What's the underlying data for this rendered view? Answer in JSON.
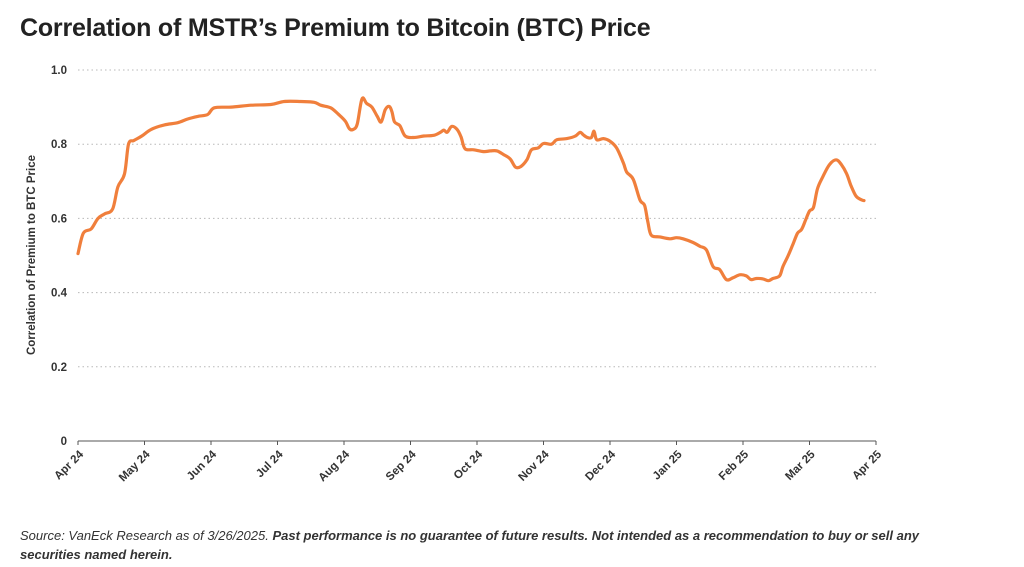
{
  "chart_data": {
    "type": "line",
    "title": "Correlation of MSTR’s Premium to Bitcoin (BTC) Price",
    "xlabel": "",
    "ylabel": "Correlation of Premium to BTC Price",
    "ylim": [
      0,
      1.0
    ],
    "yticks": [
      0,
      0.2,
      0.4,
      0.6,
      0.8,
      1.0
    ],
    "ytick_labels": [
      "0",
      "0.2",
      "0.4",
      "0.6",
      "0.8",
      "1.0"
    ],
    "x_tick_labels": [
      "Apr 24",
      "May 24",
      "Jun 24",
      "Jul 24",
      "Aug 24",
      "Sep 24",
      "Oct 24",
      "Nov 24",
      "Dec 24",
      "Jan 25",
      "Feb 25",
      "Mar 25",
      "Apr 25"
    ],
    "x_unit": "months since Apr 24",
    "grid": true,
    "line_color": "#F07F3C",
    "series": [
      {
        "name": "Correlation of MSTR’s Premium to BTC Price",
        "points": [
          [
            0.0,
            0.505
          ],
          [
            0.08,
            0.56
          ],
          [
            0.2,
            0.572
          ],
          [
            0.3,
            0.6
          ],
          [
            0.4,
            0.612
          ],
          [
            0.52,
            0.625
          ],
          [
            0.6,
            0.685
          ],
          [
            0.7,
            0.72
          ],
          [
            0.76,
            0.8
          ],
          [
            0.84,
            0.81
          ],
          [
            0.96,
            0.822
          ],
          [
            1.1,
            0.84
          ],
          [
            1.3,
            0.852
          ],
          [
            1.5,
            0.858
          ],
          [
            1.65,
            0.868
          ],
          [
            1.8,
            0.875
          ],
          [
            1.95,
            0.88
          ],
          [
            2.05,
            0.898
          ],
          [
            2.3,
            0.9
          ],
          [
            2.6,
            0.905
          ],
          [
            2.9,
            0.907
          ],
          [
            3.1,
            0.915
          ],
          [
            3.35,
            0.915
          ],
          [
            3.55,
            0.913
          ],
          [
            3.65,
            0.905
          ],
          [
            3.8,
            0.898
          ],
          [
            3.92,
            0.88
          ],
          [
            4.02,
            0.862
          ],
          [
            4.08,
            0.842
          ],
          [
            4.14,
            0.84
          ],
          [
            4.2,
            0.855
          ],
          [
            4.27,
            0.922
          ],
          [
            4.34,
            0.91
          ],
          [
            4.42,
            0.9
          ],
          [
            4.5,
            0.875
          ],
          [
            4.56,
            0.86
          ],
          [
            4.62,
            0.893
          ],
          [
            4.68,
            0.902
          ],
          [
            4.72,
            0.888
          ],
          [
            4.76,
            0.86
          ],
          [
            4.84,
            0.85
          ],
          [
            4.92,
            0.822
          ],
          [
            5.05,
            0.818
          ],
          [
            5.2,
            0.822
          ],
          [
            5.35,
            0.824
          ],
          [
            5.45,
            0.832
          ],
          [
            5.5,
            0.838
          ],
          [
            5.55,
            0.832
          ],
          [
            5.62,
            0.848
          ],
          [
            5.7,
            0.84
          ],
          [
            5.76,
            0.82
          ],
          [
            5.82,
            0.788
          ],
          [
            5.95,
            0.785
          ],
          [
            6.1,
            0.78
          ],
          [
            6.2,
            0.782
          ],
          [
            6.3,
            0.782
          ],
          [
            6.4,
            0.772
          ],
          [
            6.5,
            0.76
          ],
          [
            6.58,
            0.738
          ],
          [
            6.66,
            0.74
          ],
          [
            6.75,
            0.758
          ],
          [
            6.82,
            0.785
          ],
          [
            6.92,
            0.79
          ],
          [
            7.0,
            0.802
          ],
          [
            7.12,
            0.8
          ],
          [
            7.2,
            0.812
          ],
          [
            7.35,
            0.815
          ],
          [
            7.48,
            0.822
          ],
          [
            7.55,
            0.832
          ],
          [
            7.6,
            0.825
          ],
          [
            7.66,
            0.818
          ],
          [
            7.72,
            0.818
          ],
          [
            7.76,
            0.835
          ],
          [
            7.8,
            0.812
          ],
          [
            7.9,
            0.815
          ],
          [
            8.0,
            0.808
          ],
          [
            8.1,
            0.79
          ],
          [
            8.2,
            0.75
          ],
          [
            8.25,
            0.725
          ],
          [
            8.35,
            0.705
          ],
          [
            8.45,
            0.65
          ],
          [
            8.52,
            0.635
          ],
          [
            8.57,
            0.59
          ],
          [
            8.62,
            0.555
          ],
          [
            8.75,
            0.55
          ],
          [
            8.9,
            0.545
          ],
          [
            9.0,
            0.548
          ],
          [
            9.1,
            0.545
          ],
          [
            9.25,
            0.535
          ],
          [
            9.35,
            0.525
          ],
          [
            9.45,
            0.515
          ],
          [
            9.55,
            0.47
          ],
          [
            9.65,
            0.462
          ],
          [
            9.75,
            0.435
          ],
          [
            9.85,
            0.44
          ],
          [
            9.95,
            0.448
          ],
          [
            10.05,
            0.445
          ],
          [
            10.12,
            0.435
          ],
          [
            10.2,
            0.438
          ],
          [
            10.3,
            0.437
          ],
          [
            10.38,
            0.432
          ],
          [
            10.45,
            0.438
          ],
          [
            10.55,
            0.445
          ],
          [
            10.6,
            0.47
          ],
          [
            10.68,
            0.5
          ],
          [
            10.75,
            0.53
          ],
          [
            10.82,
            0.56
          ],
          [
            10.88,
            0.57
          ],
          [
            10.94,
            0.595
          ],
          [
            11.0,
            0.62
          ],
          [
            11.06,
            0.63
          ],
          [
            11.12,
            0.68
          ],
          [
            11.2,
            0.712
          ],
          [
            11.3,
            0.745
          ],
          [
            11.4,
            0.758
          ],
          [
            11.48,
            0.745
          ],
          [
            11.56,
            0.72
          ],
          [
            11.62,
            0.69
          ],
          [
            11.7,
            0.66
          ],
          [
            11.78,
            0.65
          ],
          [
            11.82,
            0.648
          ]
        ]
      }
    ]
  },
  "footnote": {
    "source": "Source: VanEck Research as of 3/26/2025.",
    "disclaimer": "Past performance is no guarantee of future results. Not intended as a recommendation to buy or sell any securities named herein."
  }
}
